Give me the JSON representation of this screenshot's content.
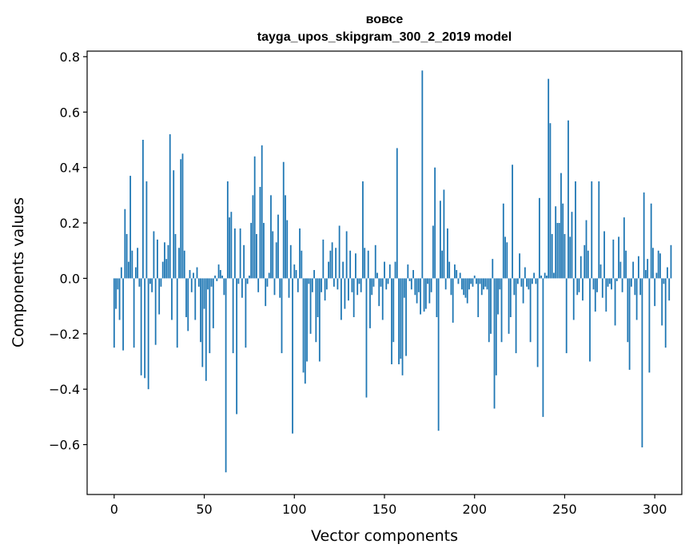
{
  "chart_data": {
    "type": "bar",
    "title": "вовсе",
    "subtitle": "tayga_upos_skipgram_300_2_2019 model",
    "xlabel": "Vector components",
    "ylabel": "Components values",
    "xlim": [
      -15,
      315
    ],
    "ylim": [
      -0.78,
      0.82
    ],
    "x_ticks": [
      0,
      50,
      100,
      150,
      200,
      250,
      300
    ],
    "x_tick_labels": [
      "0",
      "50",
      "100",
      "150",
      "200",
      "250",
      "300"
    ],
    "y_ticks": [
      -0.6,
      -0.4,
      -0.2,
      0.0,
      0.2,
      0.4,
      0.6,
      0.8
    ],
    "y_tick_labels": [
      "−0.6",
      "−0.4",
      "−0.2",
      "0.0",
      "0.2",
      "0.4",
      "0.6",
      "0.8"
    ],
    "grid": false,
    "bar_color": "#1f77b4",
    "series": [
      {
        "values": [
          -0.25,
          -0.11,
          -0.04,
          -0.15,
          0.04,
          -0.26,
          0.25,
          0.16,
          0.06,
          0.37,
          0.1,
          -0.25,
          0.04,
          0.11,
          -0.03,
          -0.35,
          0.5,
          -0.36,
          0.35,
          -0.4,
          -0.02,
          -0.05,
          0.17,
          -0.24,
          0.14,
          -0.13,
          -0.03,
          0.06,
          0.13,
          0.07,
          0.12,
          0.52,
          -0.15,
          0.39,
          0.16,
          -0.25,
          0.11,
          0.43,
          0.45,
          0.1,
          -0.14,
          -0.19,
          0.03,
          -0.05,
          0.02,
          -0.15,
          0.04,
          -0.03,
          -0.23,
          -0.32,
          -0.11,
          -0.37,
          -0.04,
          -0.27,
          -0.03,
          -0.18,
          0.01,
          -0.01,
          0.05,
          0.03,
          0.01,
          -0.06,
          -0.7,
          0.35,
          0.22,
          0.24,
          -0.27,
          0.18,
          -0.49,
          -0.02,
          0.18,
          -0.07,
          0.12,
          -0.25,
          -0.02,
          0.01,
          0.2,
          0.3,
          0.44,
          0.16,
          -0.05,
          0.33,
          0.48,
          0.2,
          -0.1,
          -0.03,
          0.02,
          0.3,
          0.17,
          -0.06,
          0.13,
          0.23,
          -0.07,
          -0.27,
          0.42,
          0.3,
          0.21,
          -0.07,
          0.12,
          -0.56,
          0.05,
          0.03,
          -0.05,
          0.18,
          0.1,
          -0.34,
          -0.38,
          -0.3,
          -0.02,
          -0.2,
          -0.05,
          0.03,
          -0.23,
          -0.14,
          -0.3,
          -0.05,
          0.14,
          -0.08,
          -0.04,
          0.06,
          0.1,
          0.13,
          -0.03,
          0.11,
          -0.04,
          0.19,
          -0.15,
          0.06,
          -0.11,
          0.17,
          -0.08,
          0.1,
          -0.05,
          -0.14,
          0.09,
          -0.06,
          -0.02,
          -0.05,
          0.35,
          0.11,
          -0.43,
          0.1,
          -0.18,
          -0.06,
          -0.03,
          0.12,
          0.02,
          -0.1,
          -0.03,
          -0.15,
          0.06,
          -0.04,
          -0.02,
          0.05,
          -0.31,
          -0.23,
          0.06,
          0.47,
          -0.31,
          -0.29,
          -0.35,
          -0.07,
          -0.28,
          0.05,
          -0.01,
          -0.04,
          0.03,
          -0.06,
          -0.09,
          -0.05,
          -0.13,
          0.75,
          -0.12,
          -0.11,
          -0.02,
          -0.09,
          -0.05,
          0.19,
          0.4,
          -0.14,
          -0.55,
          0.28,
          0.1,
          0.32,
          -0.04,
          0.18,
          0.06,
          -0.06,
          -0.16,
          0.05,
          0.03,
          -0.02,
          0.02,
          -0.04,
          -0.06,
          -0.07,
          -0.09,
          -0.04,
          -0.02,
          -0.03,
          0.01,
          -0.02,
          -0.14,
          -0.02,
          -0.06,
          -0.04,
          -0.03,
          -0.04,
          -0.23,
          -0.2,
          0.07,
          -0.47,
          -0.35,
          -0.13,
          -0.04,
          -0.23,
          0.27,
          0.15,
          0.13,
          -0.2,
          -0.14,
          0.41,
          -0.06,
          -0.27,
          -0.02,
          0.09,
          -0.03,
          -0.09,
          0.04,
          -0.03,
          -0.04,
          -0.23,
          -0.02,
          0.02,
          -0.02,
          -0.32,
          0.29,
          0.01,
          -0.5,
          0.02,
          0.01,
          0.72,
          0.56,
          0.16,
          0.02,
          0.26,
          0.2,
          0.2,
          0.38,
          0.27,
          0.16,
          -0.27,
          0.57,
          0.15,
          0.24,
          -0.15,
          0.35,
          -0.06,
          -0.05,
          0.08,
          -0.08,
          0.12,
          0.21,
          0.1,
          -0.3,
          0.35,
          -0.04,
          -0.12,
          -0.05,
          0.35,
          0.05,
          -0.07,
          0.17,
          -0.12,
          -0.03,
          -0.02,
          -0.04,
          0.14,
          -0.17,
          -0.01,
          0.15,
          0.06,
          -0.05,
          0.22,
          0.1,
          -0.23,
          -0.33,
          -0.03,
          0.06,
          -0.06,
          -0.15,
          0.08,
          -0.06,
          -0.61,
          0.31,
          0.03,
          0.07,
          -0.34,
          0.27,
          0.11,
          -0.1,
          0.02,
          0.1,
          0.09,
          -0.17,
          -0.02,
          -0.25,
          0.04,
          -0.08,
          0.12
        ]
      }
    ]
  }
}
